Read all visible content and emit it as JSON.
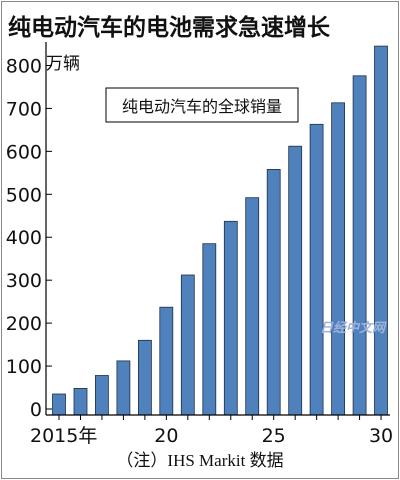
{
  "chart_data": {
    "type": "bar",
    "title": "纯电动汽车的电池需求急速增长",
    "ylabel": "万辆",
    "legend_label": "纯电动汽车的全球销量",
    "note": "（注）IHS Markit 数据",
    "watermark": "日经中文网",
    "x_tick_labels": [
      "2015年",
      "20",
      "25",
      "30"
    ],
    "x_tick_years": [
      2015,
      2020,
      2025,
      2030
    ],
    "y_ticks": [
      0,
      100,
      200,
      300,
      400,
      500,
      600,
      700,
      800
    ],
    "ylim": [
      0,
      850
    ],
    "categories": [
      2015,
      2016,
      2017,
      2018,
      2019,
      2020,
      2021,
      2022,
      2023,
      2024,
      2025,
      2026,
      2027,
      2028,
      2029,
      2030
    ],
    "values": [
      35,
      48,
      78,
      112,
      160,
      237,
      312,
      385,
      437,
      492,
      558,
      612,
      663,
      713,
      776,
      845
    ],
    "grid": false,
    "colors": {
      "bar_fill": "#4f81bd",
      "bar_stroke": "#1e2f46",
      "axis": "#000000"
    }
  }
}
